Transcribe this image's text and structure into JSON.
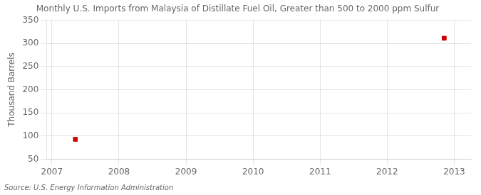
{
  "chart_data": {
    "type": "scatter",
    "title": "Monthly U.S. Imports from Malaysia of Distillate Fuel Oil, Greater than 500 to 2000 ppm Sulfur",
    "y_label": "Thousand Barrels",
    "annotations": [
      "Source: U.S. Energy Information Administration"
    ],
    "x": [
      2007.35,
      2012.85
    ],
    "values": [
      93,
      311
    ],
    "color": "#cc0000",
    "marker": "square",
    "xlim": [
      2006.92,
      2013.25
    ],
    "xticks": [
      2007,
      2008,
      2009,
      2010,
      2011,
      2012,
      2013
    ],
    "ylim": [
      50,
      350
    ],
    "yticks": [
      50,
      100,
      150,
      200,
      250,
      300,
      350
    ],
    "grid": true
  }
}
